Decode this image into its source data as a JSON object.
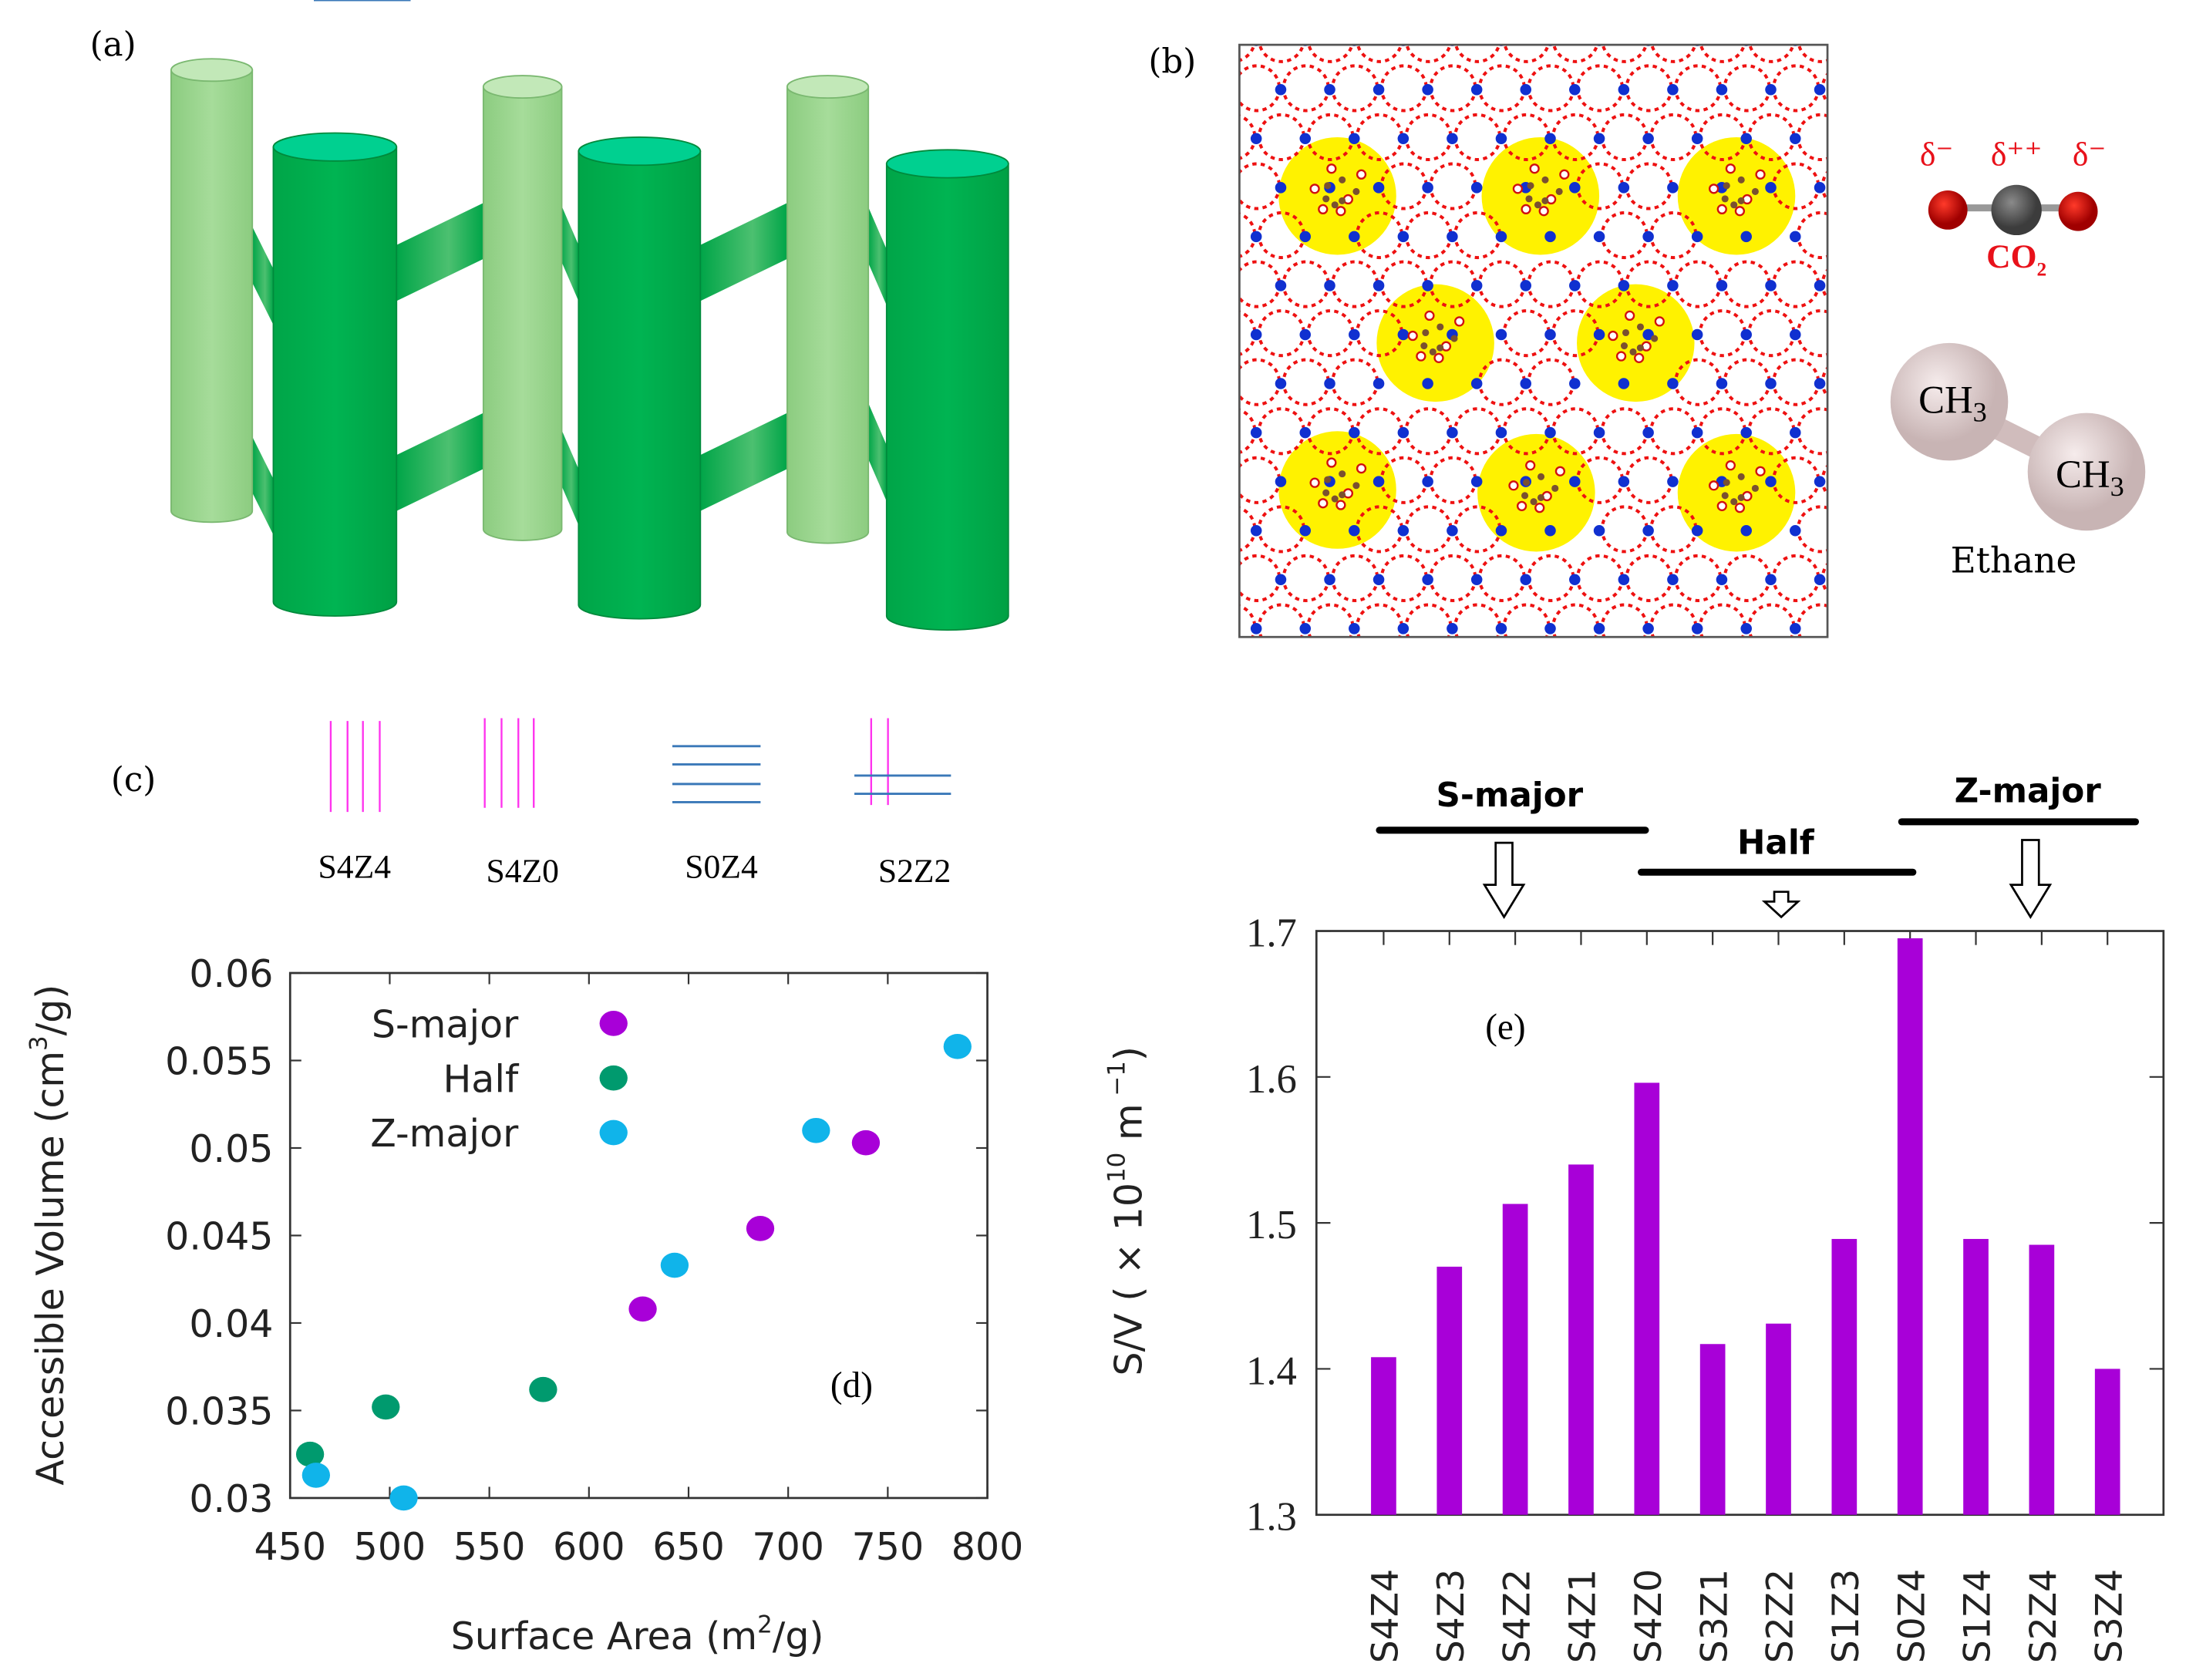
{
  "panels": {
    "a": {
      "label": "(a)"
    },
    "b": {
      "label": "(b)",
      "co2": {
        "delta_left": "δ⁻",
        "delta_center": "δ⁺⁺",
        "delta_right": "δ⁻",
        "name": "CO",
        "name_sub": "2"
      },
      "ethane": {
        "group1": "CH",
        "group2": "CH",
        "sub": "3",
        "name": "Ethane"
      }
    },
    "c": {
      "label": "(c)",
      "patterns": [
        "S4Z4",
        "S4Z0",
        "S0Z4",
        "S2Z2"
      ]
    },
    "d": {
      "label": "(d)"
    },
    "e": {
      "label": "(e)",
      "groups": [
        "S-major",
        "Half",
        "Z-major"
      ]
    }
  },
  "colors": {
    "s_major": "#a800d8",
    "half": "#009a6e",
    "z_major": "#10b4ea",
    "bar": "#a800d8",
    "light_green": "#98d48c",
    "dark_green": "#00b050",
    "lattice_red": "#ee1111",
    "lattice_blue": "#1030d0",
    "pore": "#fff200"
  },
  "chart_data": [
    {
      "type": "scatter",
      "xlabel": "Surface Area (m",
      "xlabel_sup": "2",
      "xlabel_end": "/g)",
      "ylabel": "Accessible Volume (cm",
      "ylabel_sup": "3",
      "ylabel_end": "/g)",
      "xlim": [
        450,
        800
      ],
      "ylim": [
        0.03,
        0.06
      ],
      "xticks": [
        "450",
        "500",
        "550",
        "600",
        "650",
        "700",
        "750",
        "800"
      ],
      "yticks": [
        "0.03",
        "0.035",
        "0.04",
        "0.045",
        "0.05",
        "0.055",
        "0.06"
      ],
      "legend_position": "top-left",
      "series": [
        {
          "name": "S-major",
          "color": "#a800d8",
          "points": [
            [
              627,
              0.0408
            ],
            [
              686,
              0.0454
            ],
            [
              739,
              0.0503
            ]
          ]
        },
        {
          "name": "Half",
          "color": "#009a6e",
          "points": [
            [
              460,
              0.0325
            ],
            [
              498,
              0.0352
            ],
            [
              577,
              0.0362
            ]
          ]
        },
        {
          "name": "Z-major",
          "color": "#10b4ea",
          "points": [
            [
              463,
              0.0313
            ],
            [
              507,
              0.03
            ],
            [
              643,
              0.0433
            ],
            [
              714,
              0.051
            ],
            [
              785,
              0.0558
            ]
          ]
        }
      ]
    },
    {
      "type": "bar",
      "ylabel": "S/V ( × 10",
      "ylabel_sup": "10",
      "ylabel_end": " m",
      "ylabel_sup2": " −1",
      "ylabel_close": ")",
      "ylim": [
        1.3,
        1.7
      ],
      "yticks": [
        "1.3",
        "1.4",
        "1.5",
        "1.6",
        "1.7"
      ],
      "categories": [
        "S4Z4",
        "S4Z3",
        "S4Z2",
        "S4Z1",
        "S4Z0",
        "S3Z1",
        "S2Z2",
        "S1Z3",
        "S0Z4",
        "S1Z4",
        "S2Z4",
        "S3Z4"
      ],
      "values": [
        1.408,
        1.47,
        1.513,
        1.54,
        1.596,
        1.417,
        1.431,
        1.489,
        1.695,
        1.489,
        1.485,
        1.4
      ]
    }
  ]
}
